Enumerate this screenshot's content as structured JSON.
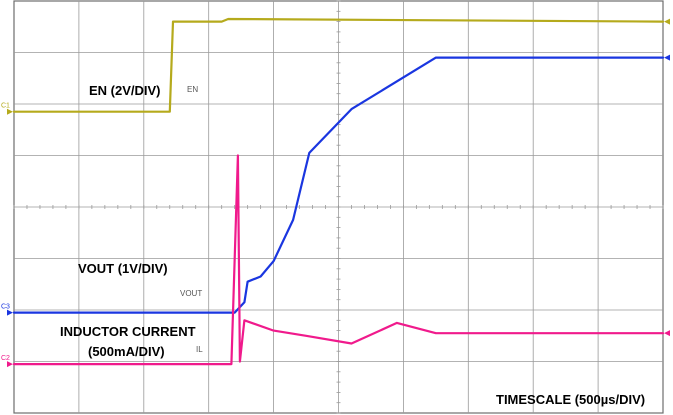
{
  "chart_data": {
    "type": "line",
    "title": "",
    "xlabel": "TIMESCALE (500µs/DIV)",
    "ylabel": "",
    "x_divisions": 10,
    "y_divisions": 8,
    "grid": true,
    "colors": {
      "EN": "#b5aa1c",
      "VOUT": "#1a36e0",
      "INDUCTOR CURRENT": "#f01a8c",
      "grid": "#9a9a9a",
      "frame": "#6d6d6d"
    },
    "x_unit": "div",
    "y_unit": "div",
    "series": [
      {
        "name": "EN",
        "scale_label": "EN (2V/DIV)",
        "marker_label": "EN",
        "ref_label": "C1",
        "x": [
          0,
          2.4,
          2.45,
          3.2,
          3.3,
          10
        ],
        "y": [
          5.85,
          5.85,
          7.6,
          7.6,
          7.65,
          7.6
        ]
      },
      {
        "name": "VOUT",
        "scale_label": "VOUT (1V/DIV)",
        "marker_label": "VOUT",
        "ref_label": "C3",
        "x": [
          0,
          3.4,
          3.55,
          3.6,
          3.8,
          4.0,
          4.3,
          4.55,
          5.2,
          6.5,
          10
        ],
        "y": [
          1.95,
          1.95,
          2.15,
          2.55,
          2.65,
          2.95,
          3.75,
          5.05,
          5.9,
          6.9,
          6.9
        ]
      },
      {
        "name": "INDUCTOR CURRENT",
        "scale_label": "INDUCTOR CURRENT",
        "scale_sub_label": "(500mA/DIV)",
        "marker_label": "IL",
        "ref_label": "C2",
        "x": [
          0,
          3.35,
          3.45,
          3.48,
          3.55,
          4.0,
          4.5,
          5.2,
          5.9,
          6.5,
          10
        ],
        "y": [
          0.95,
          0.95,
          5.0,
          1.0,
          1.8,
          1.6,
          1.5,
          1.35,
          1.75,
          1.55,
          1.55
        ]
      }
    ]
  }
}
